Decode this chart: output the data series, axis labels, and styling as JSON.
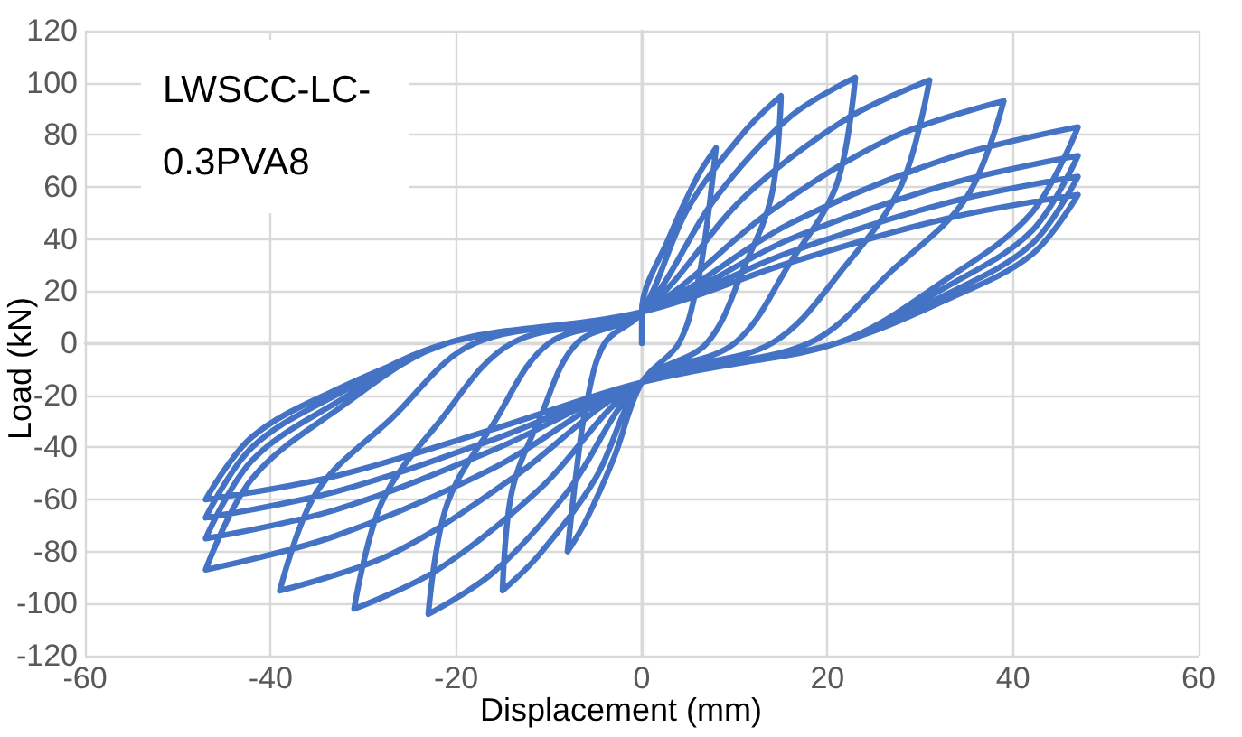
{
  "chart_data": {
    "type": "line",
    "title": "LWSCC-LC-0.3PVA8",
    "xlabel": "Displacement (mm)",
    "ylabel": "Load (kN)",
    "xlim": [
      -60,
      60
    ],
    "xticks": [
      -60,
      -40,
      -20,
      0,
      20,
      40,
      60
    ],
    "ylim": [
      -120,
      120
    ],
    "yticks": [
      -120,
      -100,
      -80,
      -60,
      -40,
      -20,
      0,
      20,
      40,
      60,
      80,
      100,
      120
    ],
    "grid": true,
    "marker": "none",
    "line_style": "solid",
    "series": [
      {
        "color": "#4472c4",
        "x": [
          0,
          0,
          3,
          6,
          8,
          7,
          6,
          4,
          0,
          -3,
          -6,
          -8,
          -7,
          -6,
          -4,
          0,
          5,
          11,
          15,
          14,
          11,
          7,
          0,
          -5,
          -11,
          -15,
          -14,
          -11,
          -7,
          0,
          8,
          16,
          23,
          21,
          16,
          10,
          0,
          -8,
          -16,
          -23,
          -21,
          -16,
          -10,
          0,
          11,
          22,
          31,
          28,
          22,
          14,
          0,
          -11,
          -22,
          -31,
          -28,
          -22,
          -14,
          0,
          14,
          27,
          39,
          35,
          27,
          18,
          0,
          -14,
          -27,
          -39,
          -35,
          -27,
          -18,
          0,
          16,
          33,
          47,
          42,
          33,
          21,
          0,
          -16,
          -33,
          -47,
          -42,
          -33,
          -21,
          0,
          16,
          33,
          47,
          42,
          33,
          21,
          0,
          -16,
          -33,
          -47,
          -42,
          -33,
          -21,
          0,
          16,
          33,
          47,
          42,
          33,
          21,
          0,
          -16,
          -33,
          -47,
          -42,
          -33,
          -21,
          0,
          16,
          33,
          47,
          42,
          33,
          21,
          0,
          -16,
          -33,
          -47,
          -42,
          -33,
          -21
        ],
        "values": [
          0,
          12,
          41,
          64,
          75,
          45,
          23,
          0,
          -15,
          -44,
          -68,
          -80,
          -48,
          -24,
          0,
          12,
          52,
          81,
          95,
          57,
          29,
          0,
          -15,
          -52,
          -81,
          -95,
          -57,
          -29,
          0,
          12,
          56,
          87,
          102,
          61,
          31,
          0,
          -15,
          -57,
          -88,
          -104,
          -62,
          -31,
          0,
          12,
          56,
          86,
          101,
          61,
          30,
          0,
          -15,
          -56,
          -87,
          -102,
          -61,
          -31,
          0,
          12,
          51,
          79,
          93,
          56,
          28,
          0,
          -15,
          -52,
          -81,
          -95,
          -57,
          -29,
          0,
          12,
          46,
          71,
          83,
          50,
          25,
          0,
          -15,
          -48,
          -74,
          -87,
          -52,
          -26,
          0,
          12,
          40,
          61,
          72,
          43,
          22,
          0,
          -15,
          -41,
          -64,
          -75,
          -45,
          -23,
          0,
          12,
          35,
          54,
          64,
          38,
          19,
          0,
          -15,
          -37,
          -57,
          -67,
          -40,
          -20,
          0,
          12,
          31,
          48,
          57,
          34,
          17,
          0,
          -15,
          -33,
          -51,
          -60,
          -36,
          -18,
          0
        ]
      }
    ]
  }
}
